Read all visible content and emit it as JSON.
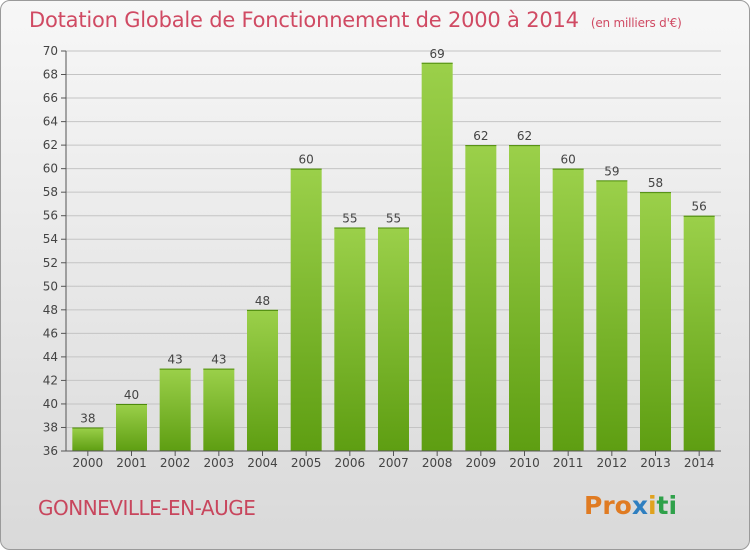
{
  "title": "Dotation Globale de Fonctionnement de 2000 à 2014",
  "subtitle": "(en milliers d'€)",
  "commune": "GONNEVILLE-EN-AUGE",
  "logo": {
    "p1": "Pro",
    "p2": "x",
    "p3": "i",
    "p4": "ti"
  },
  "colors": {
    "bar_top": "#9bd04a",
    "bar_bottom": "#5e9e12",
    "title": "#d04a63"
  },
  "chart_data": {
    "type": "bar",
    "categories": [
      "2000",
      "2001",
      "2002",
      "2003",
      "2004",
      "2005",
      "2006",
      "2007",
      "2008",
      "2009",
      "2010",
      "2011",
      "2012",
      "2013",
      "2014"
    ],
    "values": [
      38,
      40,
      43,
      43,
      48,
      60,
      55,
      55,
      69,
      62,
      62,
      60,
      59,
      58,
      56
    ],
    "ylim": [
      36,
      70
    ],
    "yticks": [
      36,
      38,
      40,
      42,
      44,
      46,
      48,
      50,
      52,
      54,
      56,
      58,
      60,
      62,
      64,
      66,
      68,
      70
    ],
    "grid": true,
    "title": "Dotation Globale de Fonctionnement de 2000 à 2014",
    "subtitle": "(en milliers d'€)"
  }
}
